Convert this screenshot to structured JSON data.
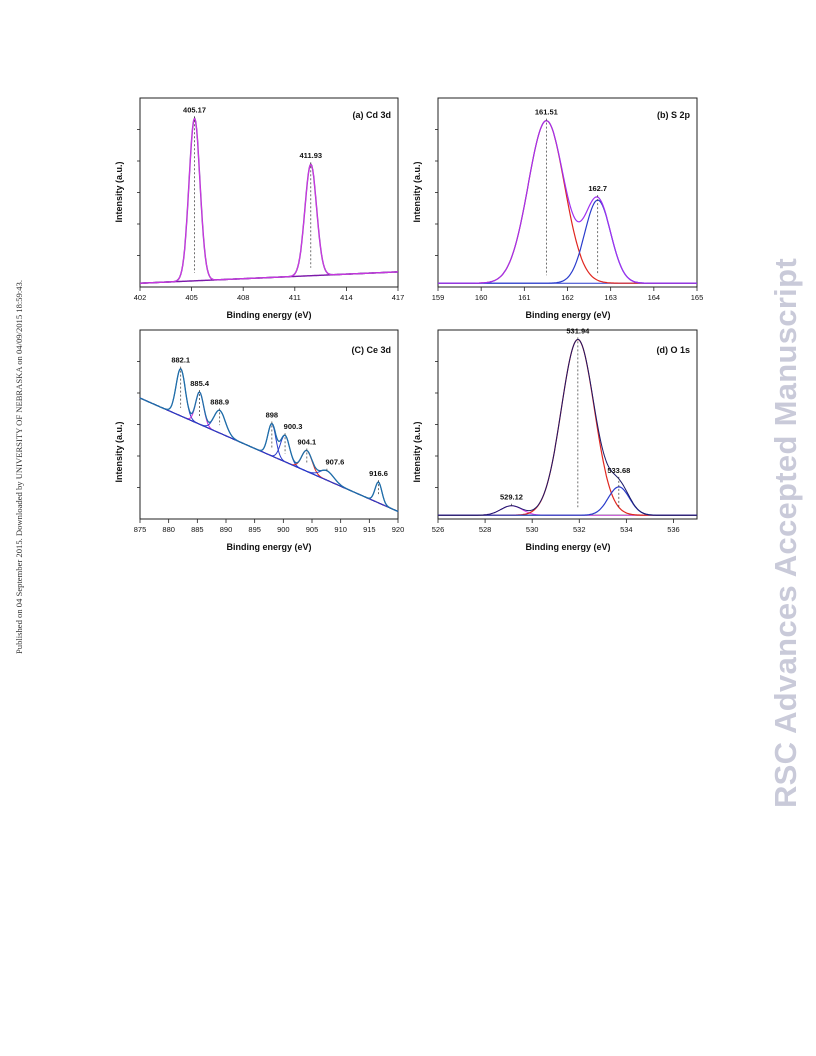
{
  "side_note": "Published on 04 September 2015. Downloaded by UNIVERSITY OF NEBRASKA on 04/09/2015 18:59:43.",
  "watermark": "RSC Advances Accepted Manuscript",
  "chart_data": [
    {
      "type": "line",
      "title": "(a) Cd 3d",
      "xlabel": "Binding energy (eV)",
      "ylabel": "Intensity (a.u.)",
      "xlim": [
        402,
        417
      ],
      "xticks": [
        "402",
        "405",
        "408",
        "411",
        "414",
        "417"
      ],
      "peaks": [
        {
          "position": 405.17,
          "label": "405.17",
          "height": 0.86,
          "width": 0.32
        },
        {
          "position": 411.93,
          "label": "411.93",
          "height": 0.59,
          "width": 0.34
        }
      ],
      "baseline": [
        0.02,
        0.08
      ],
      "colors": {
        "fit": "#7a1aa8",
        "envelope": "#e040f0",
        "baseline": "#e040f0"
      }
    },
    {
      "type": "line",
      "title": "(b) S 2p",
      "xlabel": "Binding energy (eV)",
      "ylabel": "Intensity (a.u.)",
      "xlim": [
        159,
        165
      ],
      "xticks": [
        "159",
        "160",
        "161",
        "162",
        "163",
        "164",
        "165"
      ],
      "peaks": [
        {
          "position": 161.51,
          "label": "161.51",
          "height": 0.86,
          "width": 0.42
        },
        {
          "position": 162.7,
          "label": "162.7",
          "height": 0.44,
          "width": 0.3
        }
      ],
      "baseline": [
        0.02,
        0.02
      ],
      "colors": {
        "p1": "#e0261f",
        "p2": "#2a3ccc",
        "envelope": "#a030f0",
        "baseline": "#2a3ccc"
      }
    },
    {
      "type": "line",
      "title": "(C) Ce 3d",
      "xlabel": "Binding energy (eV)",
      "ylabel": "Intensity (a.u.)",
      "xlim": [
        875,
        920
      ],
      "xticks": [
        "875",
        "880",
        "885",
        "890",
        "895",
        "900",
        "905",
        "910",
        "915",
        "920"
      ],
      "peaks": [
        {
          "position": 882.1,
          "label": "882.1",
          "height": 0.25,
          "width": 0.8
        },
        {
          "position": 885.4,
          "label": "885.4",
          "height": 0.17,
          "width": 0.7
        },
        {
          "position": 888.9,
          "label": "888.9",
          "height": 0.12,
          "width": 1.0
        },
        {
          "position": 898,
          "label": "898",
          "height": 0.17,
          "width": 0.7
        },
        {
          "position": 900.3,
          "label": "900.3",
          "height": 0.14,
          "width": 0.8
        },
        {
          "position": 904.1,
          "label": "904.1",
          "height": 0.11,
          "width": 0.9
        },
        {
          "position": 907.6,
          "label": "907.6",
          "height": 0.05,
          "width": 1.2
        },
        {
          "position": 916.6,
          "label": "916.6",
          "height": 0.11,
          "width": 0.6
        }
      ],
      "baseline": [
        0.64,
        0.04
      ],
      "colors": {
        "data": "#1f6fa8",
        "baseline": "#9a9a20",
        "p2": "#d028d8",
        "p6": "#e0261f",
        "peak": "#2a3ccc"
      }
    },
    {
      "type": "line",
      "title": "(d) O 1s",
      "xlabel": "Binding energy (eV)",
      "ylabel": "Intensity (a.u.)",
      "xlim": [
        526,
        537
      ],
      "xticks": [
        "526",
        "528",
        "530",
        "532",
        "534",
        "536"
      ],
      "peaks": [
        {
          "position": 529.12,
          "label": "529.12",
          "height": 0.05,
          "width": 0.45
        },
        {
          "position": 531.94,
          "label": "531.94",
          "height": 0.93,
          "width": 0.7
        },
        {
          "position": 533.68,
          "label": "533.68",
          "height": 0.15,
          "width": 0.45
        }
      ],
      "baseline": [
        0.02,
        0.02
      ],
      "colors": {
        "p1": "#e040f0",
        "p2": "#e0261f",
        "p3": "#2a3ccc",
        "envelope": "#1a1a6a",
        "baseline": "#1aa020"
      }
    }
  ]
}
